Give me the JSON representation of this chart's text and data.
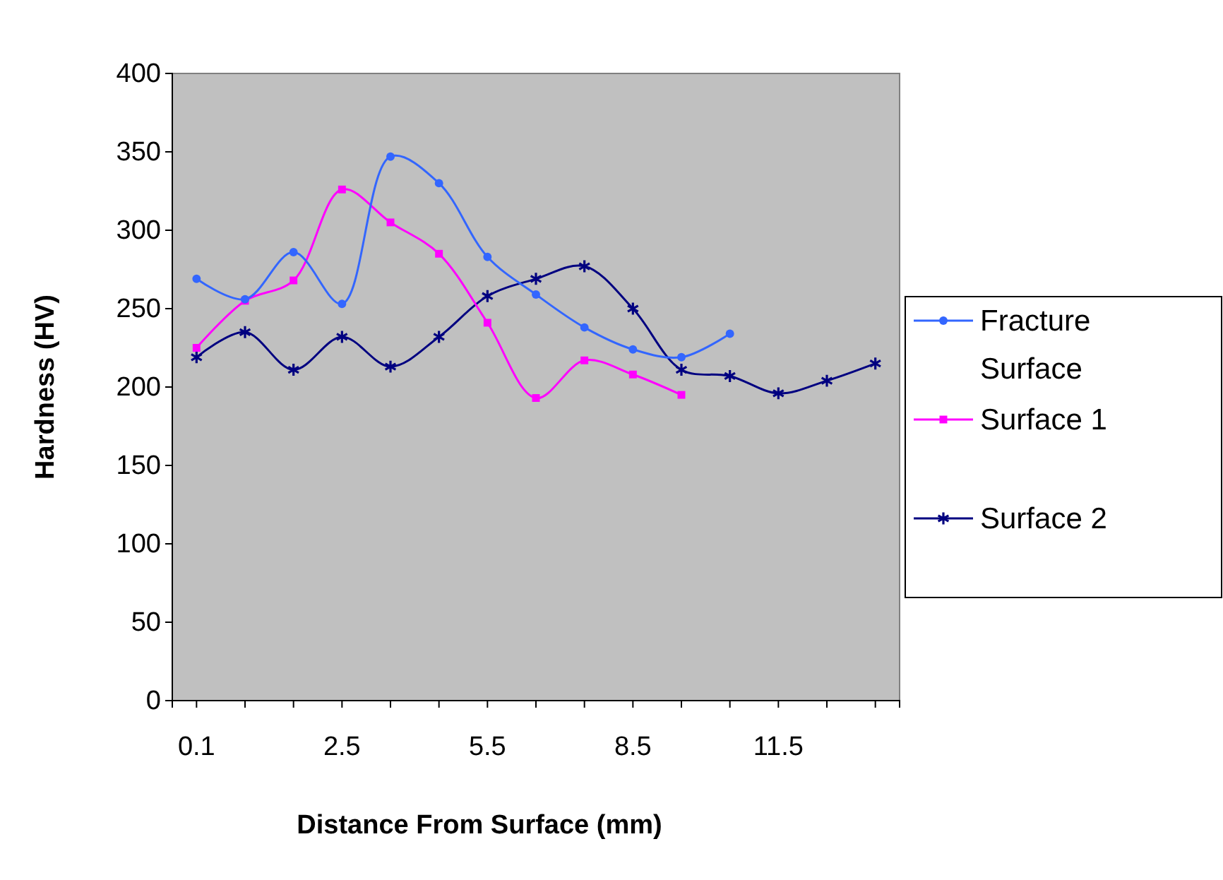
{
  "chart_data": {
    "type": "line",
    "xlabel": "Distance From Surface (mm)",
    "ylabel": "Hardness (HV)",
    "categories": [
      "0.1",
      null,
      null,
      "2.5",
      null,
      null,
      "5.5",
      null,
      null,
      "8.5",
      null,
      null,
      "11.5",
      null,
      null
    ],
    "ylim": [
      0,
      400
    ],
    "yticks": [
      0,
      50,
      100,
      150,
      200,
      250,
      300,
      350,
      400
    ],
    "grid": false,
    "legend": "right",
    "series": [
      {
        "name": "Fracture Surface",
        "color": "#3366ff",
        "marker": "circle",
        "values": [
          269,
          256,
          286,
          253,
          347,
          330,
          283,
          259,
          238,
          224,
          219,
          234,
          null,
          null,
          null
        ]
      },
      {
        "name": "Surface 1",
        "color": "#ff00ff",
        "marker": "square",
        "values": [
          225,
          255,
          268,
          326,
          305,
          285,
          241,
          193,
          217,
          208,
          195,
          null,
          null,
          null,
          null
        ]
      },
      {
        "name": "Surface 2",
        "color": "#000080",
        "marker": "cross",
        "values": [
          219,
          235,
          211,
          232,
          213,
          232,
          258,
          269,
          277,
          250,
          211,
          207,
          196,
          204,
          215
        ]
      }
    ]
  }
}
